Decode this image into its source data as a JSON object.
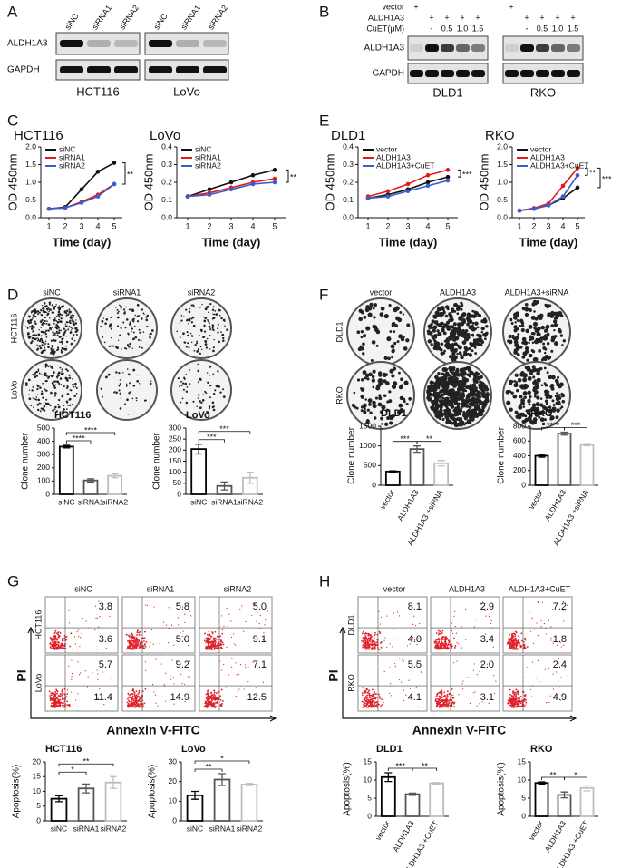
{
  "panel_labels": [
    "A",
    "B",
    "C",
    "D",
    "E",
    "F",
    "G",
    "H"
  ],
  "blot_A": {
    "lanes": [
      "siNC",
      "siRNA1",
      "siRNA2"
    ],
    "rows": [
      "ALDH1A3",
      "GAPDH"
    ],
    "cell_lines": [
      "HCT116",
      "LoVo"
    ]
  },
  "blot_B": {
    "conditions": [
      {
        "label": "vector",
        "marks": [
          "+",
          null,
          null,
          null,
          null
        ]
      },
      {
        "label": "ALDH1A3",
        "marks": [
          null,
          "+",
          "+",
          "+",
          "+"
        ]
      },
      {
        "label": "CuET(μM)",
        "marks": [
          null,
          "-",
          "0.5",
          "1.0",
          "1.5"
        ]
      }
    ],
    "rows": [
      "ALDH1A3",
      "GAPDH"
    ],
    "cell_lines": [
      "DLD1",
      "RKO"
    ]
  },
  "clone_D": {
    "columns": [
      "siNC",
      "siRNA1",
      "siRNA2"
    ],
    "rows": [
      "HCT116",
      "LoVo"
    ]
  },
  "clone_F": {
    "columns": [
      "vector",
      "ALDH1A3",
      "ALDH1A3+siRNA"
    ],
    "rows": [
      "DLD1",
      "RKO"
    ]
  },
  "flow_G": {
    "columns": [
      "siNC",
      "siRNA1",
      "siRNA2"
    ],
    "rows": [
      {
        "label": "HCT116",
        "cells": [
          [
            "3.8",
            "3.6"
          ],
          [
            "5.8",
            "5.0"
          ],
          [
            "5.0",
            "9.1"
          ]
        ]
      },
      {
        "label": "LoVo",
        "cells": [
          [
            "5.7",
            "11.4"
          ],
          [
            "9.2",
            "14.9"
          ],
          [
            "7.1",
            "12.5"
          ]
        ]
      }
    ],
    "y_label": "PI",
    "x_label": "Annexin V-FITC"
  },
  "flow_H": {
    "columns": [
      "vector",
      "ALDH1A3",
      "ALDH1A3+CuET"
    ],
    "rows": [
      {
        "label": "DLD1",
        "cells": [
          [
            "8.1",
            "4.0"
          ],
          [
            "2.9",
            "3.4"
          ],
          [
            "7.2",
            "1.8"
          ]
        ]
      },
      {
        "label": "RKO",
        "cells": [
          [
            "5.5",
            "4.1"
          ],
          [
            "2.0",
            "3.1"
          ],
          [
            "2.4",
            "4.9"
          ]
        ]
      }
    ],
    "y_label": "PI",
    "x_label": "Annexin V-FITC"
  },
  "chart_data": [
    {
      "type": "line",
      "title": "HCT116",
      "x_label": "Time (day)",
      "y_label": "OD 450nm",
      "x": [
        1,
        2,
        3,
        4,
        5
      ],
      "xlim": [
        0.5,
        5.5
      ],
      "xticks": [
        1,
        2,
        3,
        4,
        5
      ],
      "ylim": [
        0,
        2
      ],
      "yticks": [
        {
          "value": 0,
          "label": "0.0"
        },
        0.5,
        {
          "value": 1,
          "label": "1.0"
        },
        1.5,
        {
          "value": 2,
          "label": "2.0"
        }
      ],
      "legend": "upper left",
      "series": [
        {
          "name": "siNC",
          "color": "#111111",
          "values": [
            0.25,
            0.3,
            0.8,
            1.3,
            1.55
          ]
        },
        {
          "name": "siRNA1",
          "color": "#e41a1c",
          "values": [
            0.25,
            0.28,
            0.45,
            0.65,
            0.95
          ]
        },
        {
          "name": "siRNA2",
          "color": "#3a5fcd",
          "values": [
            0.25,
            0.28,
            0.42,
            0.6,
            0.95
          ]
        }
      ],
      "annotations": [
        "**"
      ]
    },
    {
      "type": "line",
      "title": "LoVo",
      "x_label": "Time (day)",
      "y_label": "OD 450nm",
      "x": [
        1,
        2,
        3,
        4,
        5
      ],
      "xlim": [
        0.5,
        5.5
      ],
      "xticks": [
        1,
        2,
        3,
        4,
        5
      ],
      "ylim": [
        0,
        0.4
      ],
      "yticks": [
        {
          "value": 0,
          "label": "0.0"
        },
        0.1,
        0.2,
        0.3,
        0.4
      ],
      "legend": "upper left",
      "series": [
        {
          "name": "siNC",
          "color": "#111111",
          "values": [
            0.12,
            0.16,
            0.2,
            0.24,
            0.27
          ]
        },
        {
          "name": "siRNA1",
          "color": "#e41a1c",
          "values": [
            0.12,
            0.14,
            0.17,
            0.2,
            0.22
          ]
        },
        {
          "name": "siRNA2",
          "color": "#3a5fcd",
          "values": [
            0.12,
            0.13,
            0.16,
            0.19,
            0.2
          ]
        }
      ],
      "annotations": [
        "**"
      ]
    },
    {
      "type": "line",
      "title": "DLD1",
      "x_label": "Time (day)",
      "y_label": "OD 450nm",
      "x": [
        1,
        2,
        3,
        4,
        5
      ],
      "xlim": [
        0.5,
        5.5
      ],
      "xticks": [
        1,
        2,
        3,
        4,
        5
      ],
      "ylim": [
        0,
        0.4
      ],
      "yticks": [
        {
          "value": 0,
          "label": "0.0"
        },
        0.1,
        0.2,
        0.3,
        0.4
      ],
      "legend": "upper left",
      "series": [
        {
          "name": "vector",
          "color": "#111111",
          "values": [
            0.11,
            0.13,
            0.16,
            0.2,
            0.23
          ]
        },
        {
          "name": "ALDH1A3",
          "color": "#e41a1c",
          "values": [
            0.12,
            0.15,
            0.19,
            0.24,
            0.27
          ]
        },
        {
          "name": "ALDH1A3+CuET",
          "color": "#3a5fcd",
          "values": [
            0.11,
            0.12,
            0.15,
            0.18,
            0.21
          ]
        }
      ],
      "annotations": [
        "***"
      ]
    },
    {
      "type": "line",
      "title": "RKO",
      "x_label": "Time (day)",
      "y_label": "OD 450nm",
      "x": [
        1,
        2,
        3,
        4,
        5
      ],
      "xlim": [
        0.5,
        5.5
      ],
      "xticks": [
        1,
        2,
        3,
        4,
        5
      ],
      "ylim": [
        0,
        2
      ],
      "yticks": [
        {
          "value": 0,
          "label": "0.0"
        },
        0.5,
        {
          "value": 1,
          "label": "1.0"
        },
        1.5,
        {
          "value": 2,
          "label": "2.0"
        }
      ],
      "legend": "upper left",
      "series": [
        {
          "name": "vector",
          "color": "#111111",
          "values": [
            0.2,
            0.25,
            0.35,
            0.55,
            0.85
          ]
        },
        {
          "name": "ALDH1A3",
          "color": "#e41a1c",
          "values": [
            0.2,
            0.27,
            0.4,
            0.9,
            1.4
          ]
        },
        {
          "name": "ALDH1A3+CuET",
          "color": "#3a5fcd",
          "values": [
            0.2,
            0.25,
            0.35,
            0.6,
            1.2
          ]
        }
      ],
      "annotations": [
        "**",
        "***"
      ]
    },
    {
      "type": "bar",
      "title": "HCT116",
      "y_label": "Clone number",
      "categories": [
        "siNC",
        "siRNA1",
        "siRNA2"
      ],
      "values": [
        360,
        105,
        140
      ],
      "errors": [
        10,
        12,
        15
      ],
      "colors": [
        "#000000",
        "#555555",
        "#bdbdbd"
      ],
      "ylim": [
        0,
        500
      ],
      "yticks": [
        0,
        100,
        200,
        300,
        400,
        500
      ],
      "annotations": [
        "****",
        "****"
      ]
    },
    {
      "type": "bar",
      "title": "LoVo",
      "y_label": "Clone number",
      "categories": [
        "siNC",
        "siRNA1",
        "siRNA2"
      ],
      "values": [
        205,
        38,
        75
      ],
      "errors": [
        22,
        18,
        25
      ],
      "colors": [
        "#000000",
        "#555555",
        "#bdbdbd"
      ],
      "ylim": [
        0,
        300
      ],
      "yticks": [
        0,
        50,
        100,
        150,
        200,
        250,
        300
      ],
      "annotations": [
        "***",
        "***"
      ]
    },
    {
      "type": "bar",
      "title": "DLD1",
      "y_label": "Clone number",
      "categories": [
        "vector",
        "ALDH1A3",
        "ALDH1A3 +siRNA"
      ],
      "values": [
        350,
        920,
        560
      ],
      "errors": [
        15,
        80,
        70
      ],
      "colors": [
        "#000000",
        "#555555",
        "#bdbdbd"
      ],
      "ylim": [
        0,
        1500
      ],
      "yticks": [
        0,
        500,
        1000,
        1500
      ],
      "annotations": [
        "***",
        "**"
      ]
    },
    {
      "type": "bar",
      "title": "RKO",
      "y_label": "Clone number",
      "categories": [
        "vector",
        "ALDH1A3",
        "ALDH1A3 +siRNA"
      ],
      "values": [
        400,
        700,
        550
      ],
      "errors": [
        20,
        20,
        15
      ],
      "colors": [
        "#000000",
        "#555555",
        "#bdbdbd"
      ],
      "ylim": [
        0,
        800
      ],
      "yticks": [
        0,
        200,
        400,
        600,
        800
      ],
      "annotations": [
        "****",
        "***"
      ]
    },
    {
      "type": "bar",
      "title": "HCT116",
      "y_label": "Apoptosis(%)",
      "categories": [
        "siNC",
        "siRNA1",
        "siRNA2"
      ],
      "values": [
        7.5,
        11,
        13
      ],
      "errors": [
        1,
        1.5,
        2
      ],
      "colors": [
        "#000000",
        "#555555",
        "#bdbdbd"
      ],
      "ylim": [
        0,
        20
      ],
      "yticks": [
        0,
        5,
        10,
        15,
        20
      ],
      "annotations": [
        "*",
        "**"
      ]
    },
    {
      "type": "bar",
      "title": "LoVo",
      "y_label": "Apoptosis(%)",
      "categories": [
        "siNC",
        "siRNA1",
        "siRNA2"
      ],
      "values": [
        13,
        21,
        18.5
      ],
      "errors": [
        2,
        3,
        0.5
      ],
      "colors": [
        "#000000",
        "#555555",
        "#bdbdbd"
      ],
      "ylim": [
        0,
        30
      ],
      "yticks": [
        0,
        10,
        20,
        30
      ],
      "annotations": [
        "**",
        "*"
      ]
    },
    {
      "type": "bar",
      "title": "DLD1",
      "y_label": "Apoptosis(%)",
      "categories": [
        "vector",
        "ALDH1A3",
        "ALDH1A3 +CuET"
      ],
      "values": [
        10.8,
        6.1,
        9.1
      ],
      "errors": [
        1.2,
        0.3,
        0.2
      ],
      "colors": [
        "#000000",
        "#555555",
        "#bdbdbd"
      ],
      "ylim": [
        0,
        15
      ],
      "yticks": [
        0,
        5,
        10,
        15
      ],
      "annotations": [
        "***",
        "**"
      ]
    },
    {
      "type": "bar",
      "title": "RKO",
      "y_label": "Apoptosis(%)",
      "categories": [
        "vector",
        "ALDH1A3",
        "ALDH1A3 +CuET"
      ],
      "values": [
        9.2,
        5.9,
        7.8
      ],
      "errors": [
        0.3,
        0.8,
        0.8
      ],
      "colors": [
        "#000000",
        "#555555",
        "#bdbdbd"
      ],
      "ylim": [
        0,
        15
      ],
      "yticks": [
        0,
        5,
        10,
        15
      ],
      "annotations": [
        "**",
        "*"
      ]
    }
  ]
}
